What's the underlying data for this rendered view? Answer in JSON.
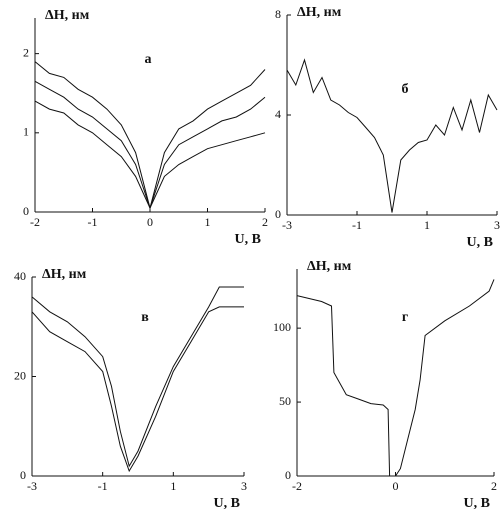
{
  "chart_data": [
    {
      "type": "line",
      "annotation": "а",
      "ylabel": "ΔH, нм",
      "xlabel": "U, B",
      "x": [
        -2,
        -1.75,
        -1.5,
        -1.25,
        -1,
        -0.75,
        -0.5,
        -0.25,
        0,
        0.25,
        0.5,
        0.75,
        1,
        1.25,
        1.5,
        1.75,
        2
      ],
      "series": [
        {
          "color": "#111111",
          "values": [
            1.9,
            1.75,
            1.7,
            1.55,
            1.45,
            1.3,
            1.1,
            0.75,
            0.05,
            0.75,
            1.05,
            1.15,
            1.3,
            1.4,
            1.5,
            1.6,
            1.8
          ]
        },
        {
          "color": "#111111",
          "values": [
            1.65,
            1.55,
            1.45,
            1.3,
            1.2,
            1.05,
            0.9,
            0.6,
            0.05,
            0.6,
            0.85,
            0.95,
            1.05,
            1.15,
            1.2,
            1.3,
            1.45
          ]
        },
        {
          "color": "#111111",
          "values": [
            1.4,
            1.3,
            1.25,
            1.1,
            1.0,
            0.85,
            0.7,
            0.45,
            0.05,
            0.45,
            0.6,
            0.7,
            0.8,
            0.85,
            0.9,
            0.95,
            1.0
          ]
        }
      ],
      "xlim": [
        -2,
        2
      ],
      "ylim": [
        0,
        2.45
      ],
      "xticks": [
        -2,
        -1,
        0,
        1,
        2
      ],
      "yticks": [
        0,
        1,
        2
      ]
    },
    {
      "type": "line",
      "annotation": "б",
      "ylabel": "ΔH, нм",
      "xlabel": "U, B",
      "x": [
        -3,
        -2.75,
        -2.5,
        -2.25,
        -2,
        -1.75,
        -1.5,
        -1.25,
        -1,
        -0.75,
        -0.5,
        -0.25,
        0,
        0.25,
        0.5,
        0.75,
        1,
        1.25,
        1.5,
        1.75,
        2,
        2.25,
        2.5,
        2.75,
        3
      ],
      "series": [
        {
          "color": "#111111",
          "values": [
            5.8,
            5.2,
            6.2,
            4.9,
            5.5,
            4.6,
            4.4,
            4.1,
            3.9,
            3.5,
            3.1,
            2.4,
            0.1,
            2.2,
            2.6,
            2.9,
            3.0,
            3.6,
            3.2,
            4.3,
            3.4,
            4.6,
            3.3,
            4.8,
            4.2
          ]
        }
      ],
      "xlim": [
        -3,
        3
      ],
      "ylim": [
        0,
        8
      ],
      "xticks": [
        -3,
        -1,
        1,
        3
      ],
      "yticks": [
        0,
        4,
        8
      ]
    },
    {
      "type": "line",
      "annotation": "в",
      "ylabel": "ΔH, нм",
      "xlabel": "U, B",
      "x": [
        -3,
        -2.5,
        -2,
        -1.5,
        -1,
        -0.75,
        -0.5,
        -0.25,
        0,
        0.5,
        1,
        1.5,
        2,
        2.3,
        3
      ],
      "series": [
        {
          "color": "#111111",
          "values": [
            36,
            33,
            31,
            28,
            24,
            18,
            9,
            2,
            5,
            14,
            22,
            28,
            34,
            38,
            38
          ]
        },
        {
          "color": "#111111",
          "values": [
            33,
            29,
            27,
            25,
            21,
            14,
            6,
            1,
            4,
            12,
            21,
            27,
            33,
            34,
            34
          ]
        }
      ],
      "xlim": [
        -3,
        3
      ],
      "ylim": [
        0,
        40
      ],
      "xticks": [
        -3,
        -1,
        1,
        3
      ],
      "yticks": [
        0,
        20,
        40
      ]
    },
    {
      "type": "line",
      "annotation": "г",
      "ylabel": "ΔH, нм",
      "xlabel": "U, B",
      "x": [
        -2,
        -1.5,
        -1.3,
        -1.25,
        -1,
        -0.75,
        -0.5,
        -0.25,
        -0.15,
        -0.12,
        0,
        0.1,
        0.25,
        0.4,
        0.5,
        0.6,
        1,
        1.5,
        1.9,
        2
      ],
      "series": [
        {
          "color": "#111111",
          "values": [
            122,
            118,
            115,
            70,
            55,
            52,
            49,
            48,
            45,
            0,
            0,
            5,
            25,
            45,
            65,
            95,
            105,
            115,
            125,
            133
          ]
        }
      ],
      "xlim": [
        -2,
        2
      ],
      "ylim": [
        0,
        140
      ],
      "xticks": [
        -2,
        0,
        2
      ],
      "yticks": [
        0,
        50,
        100
      ]
    }
  ]
}
